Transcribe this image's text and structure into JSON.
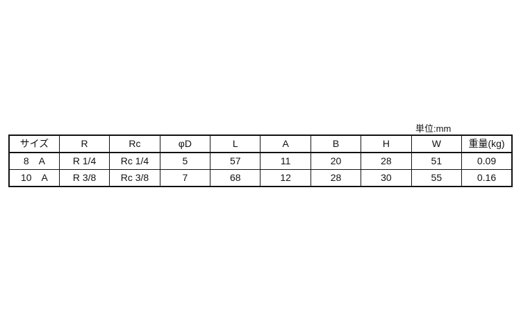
{
  "unit_label": "単位:mm",
  "table": {
    "headers": [
      "サイズ",
      "R",
      "Rc",
      "φD",
      "L",
      "A",
      "B",
      "H",
      "W",
      "重量(kg)"
    ],
    "rows": [
      [
        "8　A",
        "R 1/4",
        "Rc 1/4",
        "5",
        "57",
        "11",
        "20",
        "28",
        "51",
        "0.09"
      ],
      [
        "10　A",
        "R 3/8",
        "Rc 3/8",
        "7",
        "68",
        "12",
        "28",
        "30",
        "55",
        "0.16"
      ]
    ]
  }
}
